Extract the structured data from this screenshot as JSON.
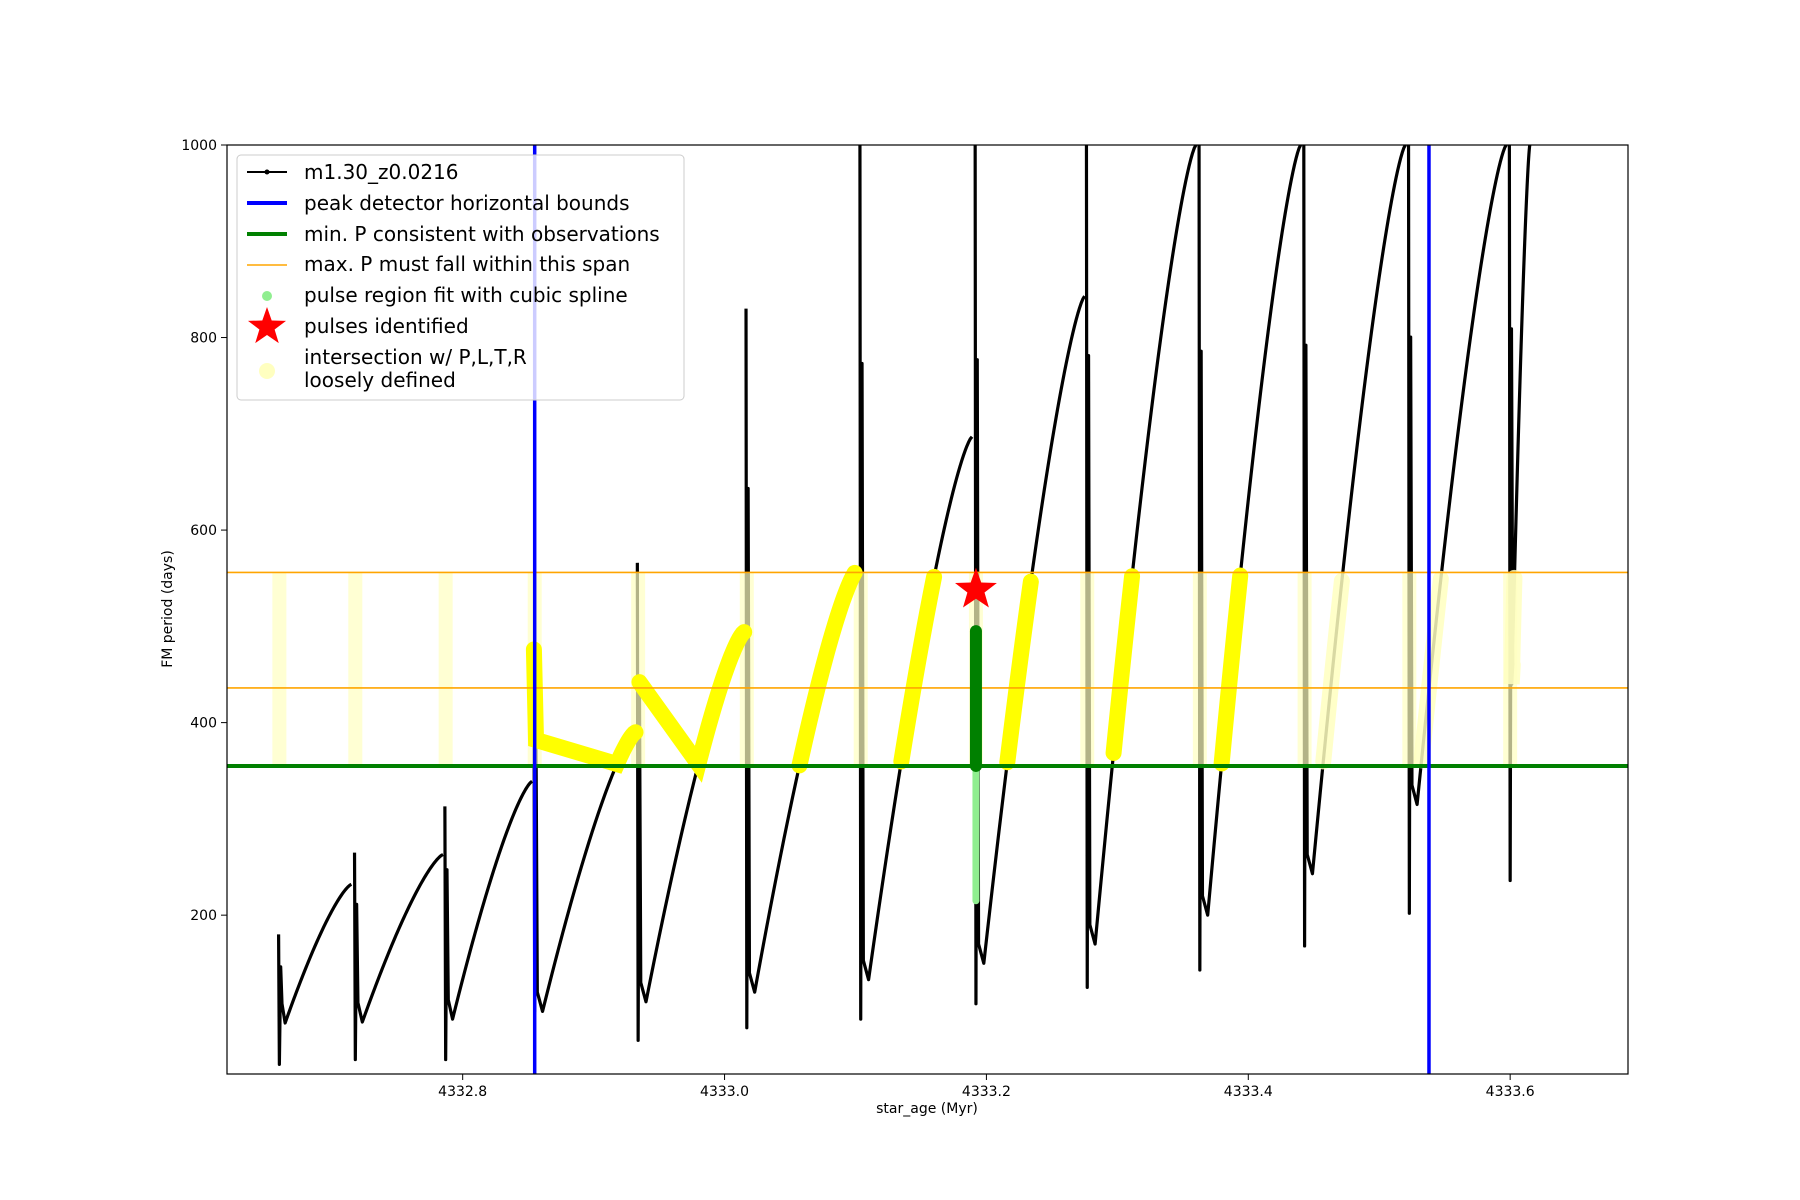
{
  "chart_data": {
    "type": "line",
    "xlabel": "star_age (Myr)",
    "ylabel": "FM period (days)",
    "xlim": [
      4332.62,
      4333.69
    ],
    "ylim": [
      35,
      1000
    ],
    "xticks": [
      4332.8,
      4333.0,
      4333.2,
      4333.4,
      4333.6
    ],
    "xtick_labels": [
      "4332.8",
      "4333.0",
      "4333.2",
      "4333.4",
      "4333.6"
    ],
    "yticks": [
      200,
      400,
      600,
      800,
      1000
    ],
    "ytick_labels": [
      "200",
      "400",
      "600",
      "800",
      "1000"
    ],
    "grid": false,
    "legend_position": "top-left",
    "legend": [
      {
        "key": "track",
        "label": "m1.30_z0.0216"
      },
      {
        "key": "peak",
        "label": "peak detector horizontal bounds"
      },
      {
        "key": "minP",
        "label": "min. P consistent with observations"
      },
      {
        "key": "maxP",
        "label": "max. P must fall within this span"
      },
      {
        "key": "spline",
        "label": "pulse region fit with cubic spline"
      },
      {
        "key": "pulses",
        "label": "pulses identified"
      },
      {
        "key": "loose",
        "label": "intersection w/ P,L,T,R"
      },
      {
        "key": "loose2",
        "label": "loosely defined"
      }
    ],
    "colors": {
      "track": "#000000",
      "peak": "#0000ff",
      "minP": "#008000",
      "maxP": "#ffa500",
      "spline": "#90ee90",
      "pulses": "#ff0000",
      "loose": "#ffff00",
      "loose_faint": "#ffffc0"
    },
    "vertical_lines": [
      4332.855,
      4333.538
    ],
    "min_period": 355,
    "max_period_span": [
      436,
      556
    ],
    "pulse_identified": {
      "x": 4333.192,
      "y": 538
    },
    "spline_region": {
      "x": 4333.192,
      "y_range": [
        215,
        495
      ]
    },
    "track_segments": [
      {
        "start": [
          4332.66,
          45
        ],
        "peak": [
          4332.715,
          232
        ],
        "min": 88,
        "spike": 180
      },
      {
        "start": [
          4332.718,
          50
        ],
        "peak": [
          4332.785,
          263
        ],
        "min": 89,
        "spike": 265
      },
      {
        "start": [
          4332.787,
          50
        ],
        "peak": [
          4332.853,
          339
        ],
        "min": 92,
        "spike": 313
      },
      {
        "start": [
          4332.855,
          100
        ],
        "peak": [
          4332.932,
          390
        ],
        "min": 100,
        "spike": 476
      },
      {
        "start": [
          4332.934,
          70
        ],
        "peak": [
          4333.015,
          494
        ],
        "min": 110,
        "spike": 566
      },
      {
        "start": [
          4333.017,
          83
        ],
        "peak": [
          4333.102,
          560
        ],
        "min": 120,
        "spike": 830
      },
      {
        "start": [
          4333.104,
          92
        ],
        "peak": [
          4333.189,
          697
        ],
        "min": 133,
        "spike": 1000
      },
      {
        "start": [
          4333.192,
          108
        ],
        "peak": [
          4333.275,
          843
        ],
        "min": 150,
        "spike": 1000
      },
      {
        "start": [
          4333.277,
          125
        ],
        "peak": [
          4333.36,
          1000
        ],
        "min": 170,
        "spike": 1000
      },
      {
        "start": [
          4333.363,
          143
        ],
        "peak": [
          4333.44,
          1000
        ],
        "min": 200,
        "spike": 1000
      },
      {
        "start": [
          4333.443,
          168
        ],
        "peak": [
          4333.52,
          1000
        ],
        "min": 243,
        "spike": 1000
      },
      {
        "start": [
          4333.523,
          202
        ],
        "peak": [
          4333.597,
          1000
        ],
        "min": 315,
        "spike": 1000
      },
      {
        "start": [
          4333.6,
          236
        ],
        "peak": [
          4333.615,
          1000
        ],
        "min": 440,
        "spike": 1000
      }
    ]
  }
}
